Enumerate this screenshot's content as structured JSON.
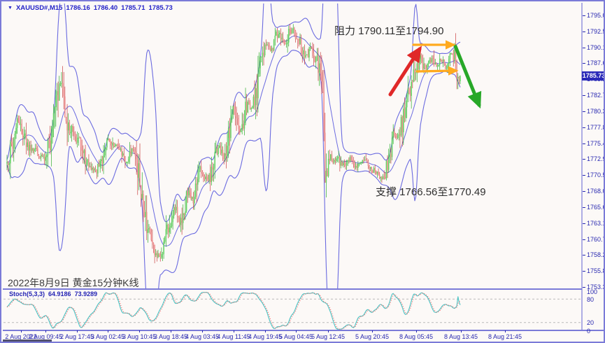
{
  "header": {
    "symbol": "XAUUSD#,M15",
    "ohlc": {
      "open": "1786.16",
      "high": "1786.40",
      "low": "1785.71",
      "close": "1785.73"
    }
  },
  "chart_data": {
    "type": "candlestick",
    "symbol": "XAUUSD#",
    "timeframe": "M15",
    "indicators": [
      "Bollinger Bands",
      "Stochastic Oscillator"
    ],
    "y_axis": {
      "range": [
        1753.35,
        1795.0
      ],
      "ticks": [
        "1795.00",
        "1792.55",
        "1790.10",
        "1787.65",
        "1785.20",
        "1782.75",
        "1780.30",
        "1777.85",
        "1775.40",
        "1772.95",
        "1770.50",
        "1768.05",
        "1765.60",
        "1763.15",
        "1760.70",
        "1758.25",
        "1755.80",
        "1753.35"
      ]
    },
    "x_axis": {
      "labels": [
        "2 Aug 2022",
        "2 Aug 09:45",
        "2 Aug 17:45",
        "3 Aug 02:45",
        "3 Aug 10:45",
        "3 Aug 18:45",
        "4 Aug 03:45",
        "4 Aug 11:45",
        "4 Aug 19:45",
        "5 Aug 04:45",
        "5 Aug 12:45",
        "5 Aug 20:45",
        "8 Aug 05:45",
        "8 Aug 13:45",
        "8 Aug 21:45"
      ]
    },
    "current_price": "1785.73",
    "price_path": [
      [
        8,
        1772.3
      ],
      [
        14,
        1774.5
      ],
      [
        22,
        1779.0
      ],
      [
        30,
        1777.4
      ],
      [
        40,
        1774.6
      ],
      [
        50,
        1774.2
      ],
      [
        63,
        1772.8
      ],
      [
        70,
        1776.0
      ],
      [
        78,
        1781.0
      ],
      [
        83,
        1785.3
      ],
      [
        88,
        1783.0
      ],
      [
        95,
        1778.5
      ],
      [
        104,
        1776.2
      ],
      [
        111,
        1775.6
      ],
      [
        121,
        1772.5
      ],
      [
        129,
        1771.4
      ],
      [
        136,
        1771.2
      ],
      [
        144,
        1773.0
      ],
      [
        152,
        1776.0
      ],
      [
        161,
        1775.0
      ],
      [
        168,
        1774.6
      ],
      [
        175,
        1773.0
      ],
      [
        181,
        1772.4
      ],
      [
        187,
        1774.6
      ],
      [
        193,
        1772.8
      ],
      [
        200,
        1768.0
      ],
      [
        207,
        1763.2
      ],
      [
        213,
        1760.8
      ],
      [
        220,
        1758.8
      ],
      [
        226,
        1757.9
      ],
      [
        233,
        1759.8
      ],
      [
        240,
        1763.3
      ],
      [
        248,
        1765.6
      ],
      [
        255,
        1762.9
      ],
      [
        262,
        1766.0
      ],
      [
        268,
        1768.3
      ],
      [
        274,
        1766.5
      ],
      [
        283,
        1772.0
      ],
      [
        290,
        1770.2
      ],
      [
        298,
        1770.0
      ],
      [
        305,
        1773.5
      ],
      [
        311,
        1774.8
      ],
      [
        318,
        1772.9
      ],
      [
        325,
        1776.0
      ],
      [
        331,
        1781.3
      ],
      [
        336,
        1778.6
      ],
      [
        341,
        1776.9
      ],
      [
        348,
        1780.0
      ],
      [
        353,
        1781.8
      ],
      [
        358,
        1780.2
      ],
      [
        364,
        1783.5
      ],
      [
        370,
        1787.2
      ],
      [
        375,
        1789.5
      ],
      [
        379,
        1790.8
      ],
      [
        385,
        1789.6
      ],
      [
        390,
        1790.6
      ],
      [
        396,
        1792.6
      ],
      [
        400,
        1792.0
      ],
      [
        405,
        1790.7
      ],
      [
        411,
        1792.2
      ],
      [
        416,
        1792.8
      ],
      [
        422,
        1791.6
      ],
      [
        428,
        1790.6
      ],
      [
        433,
        1789.2
      ],
      [
        438,
        1788.6
      ],
      [
        443,
        1790.2
      ],
      [
        449,
        1788.7
      ],
      [
        455,
        1786.6
      ],
      [
        459,
        1784.5
      ],
      [
        463,
        1769.5
      ],
      [
        466,
        1770.5
      ],
      [
        469,
        1773.8
      ],
      [
        473,
        1772.6
      ],
      [
        481,
        1773.2
      ],
      [
        487,
        1771.9
      ],
      [
        493,
        1772.6
      ],
      [
        499,
        1772.9
      ],
      [
        505,
        1771.7
      ],
      [
        511,
        1771.9
      ],
      [
        517,
        1772.9
      ],
      [
        523,
        1772.0
      ],
      [
        529,
        1771.4
      ],
      [
        535,
        1771.0
      ],
      [
        541,
        1770.3
      ],
      [
        546,
        1770.1
      ],
      [
        551,
        1772.0
      ],
      [
        556,
        1774.3
      ],
      [
        561,
        1776.8
      ],
      [
        566,
        1775.8
      ],
      [
        571,
        1777.5
      ],
      [
        577,
        1781.0
      ],
      [
        583,
        1783.5
      ],
      [
        589,
        1785.8
      ],
      [
        594,
        1787.0
      ],
      [
        599,
        1788.6
      ],
      [
        603,
        1787.2
      ],
      [
        607,
        1786.8
      ],
      [
        611,
        1787.4
      ],
      [
        615,
        1788.6
      ],
      [
        619,
        1787.4
      ],
      [
        623,
        1786.8
      ],
      [
        627,
        1788.0
      ],
      [
        631,
        1788.4
      ],
      [
        635,
        1787.0
      ],
      [
        639,
        1788.2
      ],
      [
        643,
        1789.4
      ],
      [
        647,
        1789.0
      ],
      [
        650,
        1787.2
      ],
      [
        653,
        1784.8
      ],
      [
        656,
        1785.73
      ]
    ],
    "stochastic": {
      "label": "Stoch(5,3,3)",
      "k_value": "64.9186",
      "d_value": "73.9289",
      "levels": [
        "100",
        "80",
        "20",
        "0"
      ]
    },
    "annotations": {
      "resistance": {
        "text": "阻力 1790.11至1794.90",
        "low": 1790.11,
        "high": 1794.9
      },
      "support": {
        "text": "支撑 1766.56至1770.49",
        "low": 1766.56,
        "high": 1770.49
      },
      "caption": "2022年8月9日 黄金15分钟K线",
      "arrows": [
        {
          "name": "rally-arrow",
          "color": "#e02828",
          "width": 5,
          "from": [
            556,
            133
          ],
          "to": [
            598,
            68
          ]
        },
        {
          "name": "drop-arrow",
          "color": "#28a828",
          "width": 5,
          "from": [
            649,
            64
          ],
          "to": [
            683,
            148
          ]
        },
        {
          "name": "range-top-arrow",
          "color": "#ffaa1e",
          "width": 3.2,
          "from": [
            589,
            62
          ],
          "to": [
            646,
            62
          ]
        },
        {
          "name": "range-bottom-arrow",
          "color": "#ffaa1e",
          "width": 3.2,
          "from": [
            594,
            100
          ],
          "to": [
            650,
            99
          ]
        }
      ]
    },
    "colors": {
      "background": "#fcf9f7",
      "frame": "#7b7bd8",
      "bands": "#6b6be0",
      "up_body": "#66d466",
      "up_wick": "#2eae2e",
      "down_body": "#f09090",
      "down_wick": "#c84040",
      "stoch_k": "#53c6c6",
      "stoch_d": "#ff5a5a",
      "axis_text": "#2828b0",
      "badge_bg": "#2a2ab8",
      "grid_dashed": "#b9b9b9"
    }
  }
}
